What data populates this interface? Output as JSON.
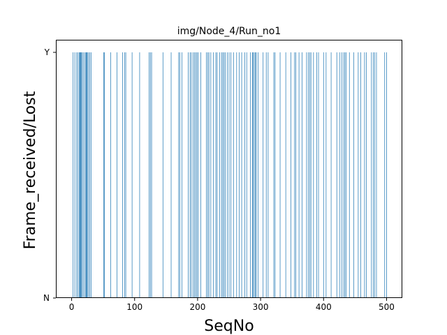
{
  "chart_data": {
    "type": "bar",
    "title": "img/Node_4/Run_no1",
    "xlabel": "SeqNo",
    "ylabel": "Frame_received/Lost",
    "xlim": [
      -25,
      525
    ],
    "ylim": [
      0,
      1
    ],
    "x_ticks": [
      0,
      100,
      200,
      300,
      400,
      500
    ],
    "y_ticks": [
      {
        "value": 0,
        "label": "N"
      },
      {
        "value": 1,
        "label": "Y"
      }
    ],
    "grid": false,
    "color": "#1f77b4",
    "series": [
      {
        "values_received": [
          2,
          5,
          8,
          10,
          12,
          13,
          14,
          15,
          16,
          18,
          20,
          22,
          23,
          24,
          25,
          27,
          29,
          31,
          51,
          52,
          62,
          72,
          81,
          84,
          86,
          96,
          108,
          123,
          125,
          127,
          145,
          158,
          170,
          172,
          175,
          185,
          188,
          190,
          193,
          195,
          197,
          199,
          201,
          205,
          214,
          216,
          218,
          221,
          225,
          229,
          231,
          235,
          238,
          240,
          242,
          244,
          247,
          250,
          253,
          257,
          262,
          266,
          270,
          275,
          278,
          284,
          287,
          288,
          290,
          292,
          293,
          296,
          304,
          309,
          312,
          321,
          323,
          331,
          340,
          348,
          354,
          356,
          361,
          366,
          373,
          376,
          378,
          380,
          384,
          389,
          392,
          400,
          404,
          412,
          421,
          426,
          429,
          432,
          434,
          436,
          441,
          448,
          455,
          459,
          465,
          468,
          476,
          479,
          481,
          484,
          497,
          500
        ]
      }
    ]
  }
}
